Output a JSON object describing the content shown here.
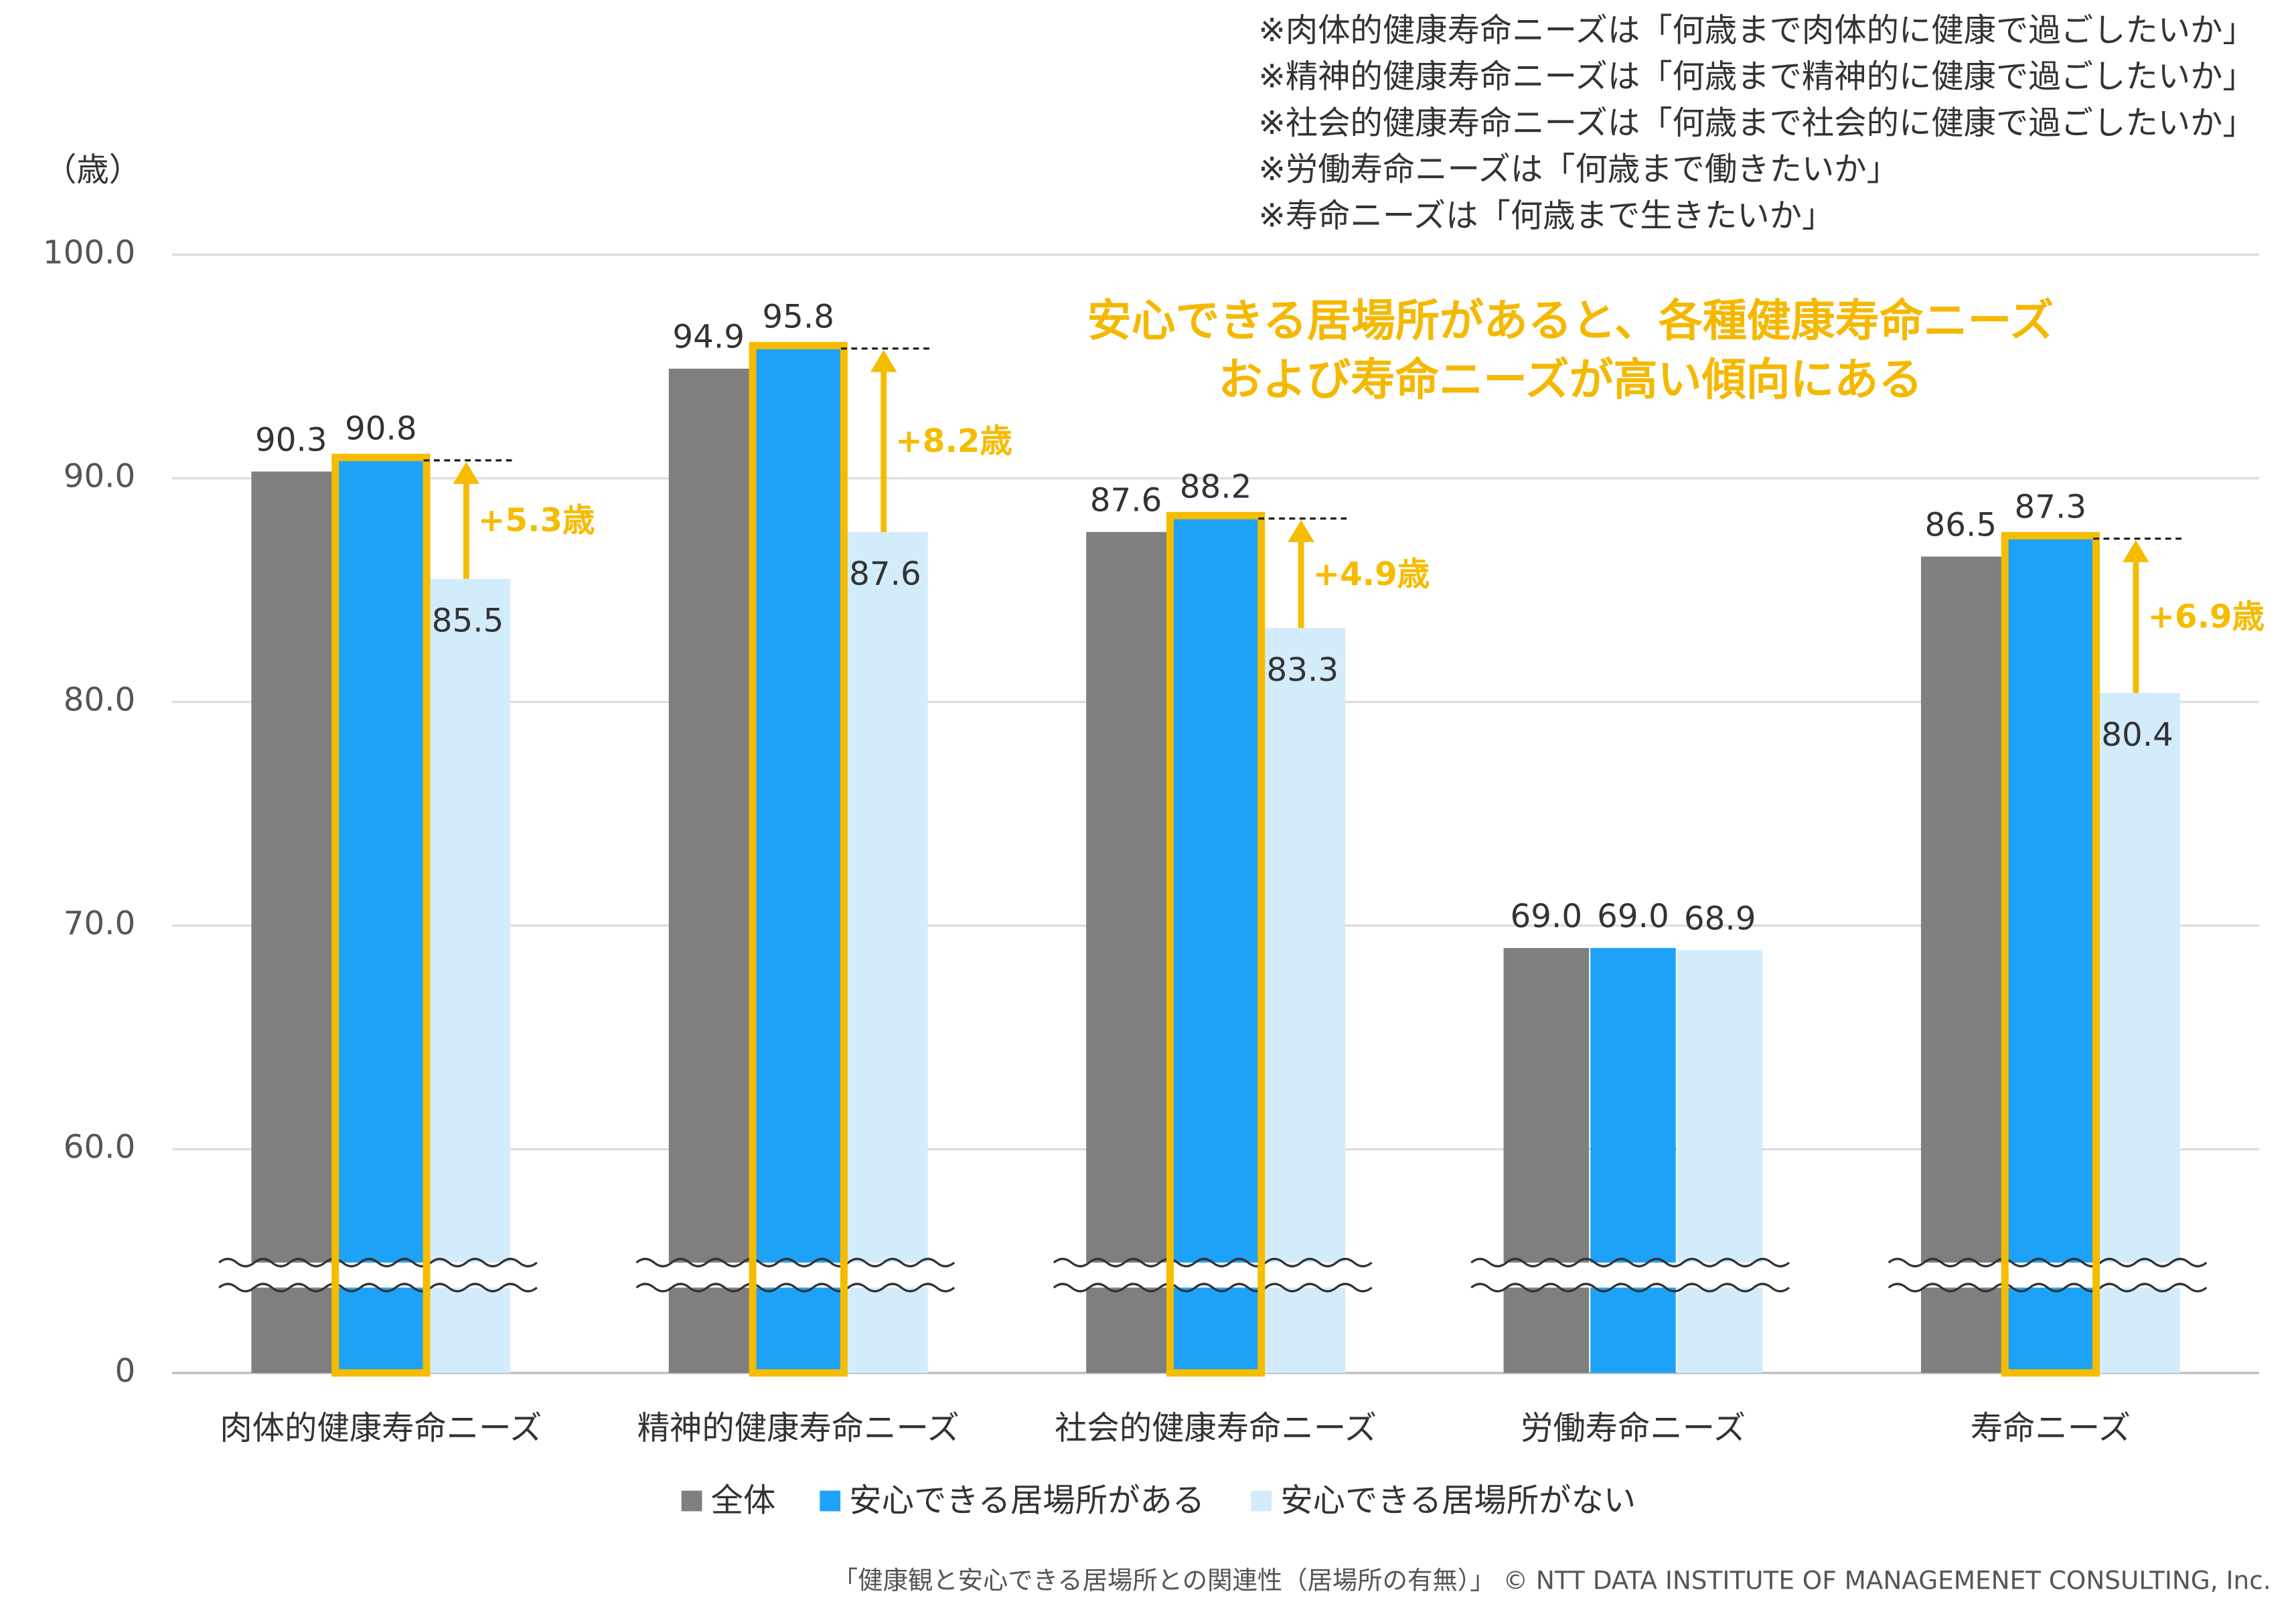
{
  "chart_data": {
    "type": "bar",
    "unit_label": "（歳）",
    "notes": [
      "※肉体的健康寿命ニーズは「何歳まで肉体的に健康で過ごしたいか」",
      "※精神的健康寿命ニーズは「何歳まで精神的に健康で過ごしたいか」",
      "※社会的健康寿命ニーズは「何歳まで社会的に健康で過ごしたいか」",
      "※労働寿命ニーズは「何歳まで働きたいか」",
      "※寿命ニーズは「何歳まで生きたいか」"
    ],
    "headline": [
      "安心できる居場所があると、各種健康寿命ニーズ",
      "および寿命ニーズが高い傾向にある"
    ],
    "headline_color": "#f5b800",
    "categories": [
      "肉体的健康寿命ニーズ",
      "精神的健康寿命ニーズ",
      "社会的健康寿命ニーズ",
      "労働寿命ニーズ",
      "寿命ニーズ"
    ],
    "series": [
      {
        "name": "全体",
        "color": "#7f7f7f",
        "values": [
          90.3,
          94.9,
          87.6,
          69.0,
          86.5
        ],
        "value_labels": [
          "90.3",
          "94.9",
          "87.6",
          "69.0",
          "86.5"
        ]
      },
      {
        "name": "安心できる居場所がある",
        "color": "#1ea2f7",
        "outline": "#f5bc00",
        "values": [
          90.8,
          95.8,
          88.2,
          69.0,
          87.3
        ],
        "value_labels": [
          "90.8",
          "95.8",
          "88.2",
          "69.0",
          "87.3"
        ]
      },
      {
        "name": "安心できる居場所がない",
        "color": "#d3ecfb",
        "values": [
          85.5,
          87.6,
          83.3,
          68.9,
          80.4
        ],
        "value_labels": [
          "85.5",
          "87.6",
          "83.3",
          "68.9",
          "80.4"
        ]
      }
    ],
    "difference_labels": [
      "+5.3歳",
      "+8.2歳",
      "+4.9歳",
      null,
      "+6.9歳"
    ],
    "ylim": [
      0,
      100
    ],
    "yticks": [
      0,
      {
        "value": 60,
        "label": "60.0"
      },
      {
        "value": 70,
        "label": "70.0"
      },
      {
        "value": 80,
        "label": "80.0"
      },
      {
        "value": 90,
        "label": "90.0"
      },
      {
        "value": 100,
        "label": "100.0"
      }
    ],
    "axis_break": true,
    "grid": true,
    "legend": "bottom",
    "source": "「健康観と安心できる居場所との関連性（居場所の有無）」 © NTT DATA INSTITUTE OF MANAGEMENET CONSULTING, Inc."
  }
}
